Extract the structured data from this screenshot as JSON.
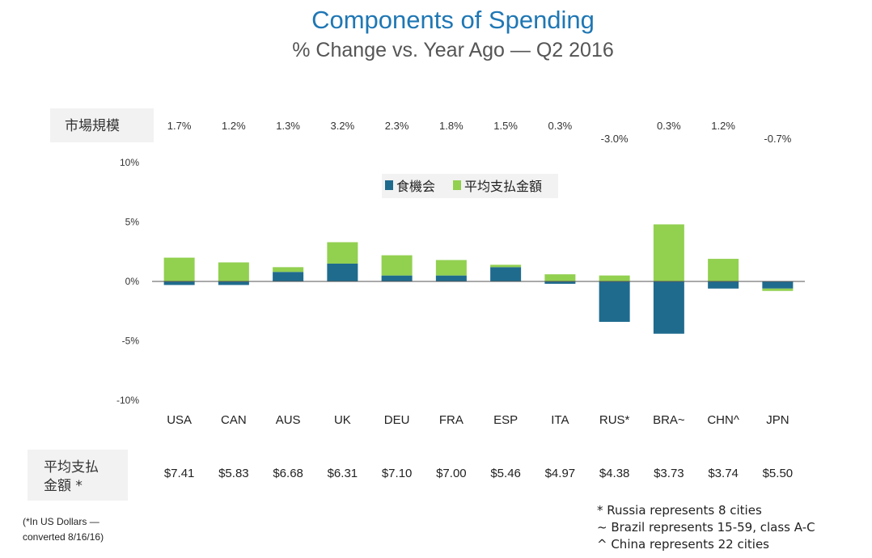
{
  "chart_data": {
    "type": "bar",
    "stacked": true,
    "title": "Components of Spending",
    "subtitle": "% Change vs. Year Ago — Q2 2016",
    "categories": [
      "USA",
      "CAN",
      "AUS",
      "UK",
      "DEU",
      "FRA",
      "ESP",
      "ITA",
      "RUS*",
      "BRA~",
      "CHN^",
      "JPN"
    ],
    "series": [
      {
        "name": "食機会",
        "color": "#1f6b8e",
        "values": [
          -0.3,
          -0.3,
          0.8,
          1.5,
          0.5,
          0.5,
          1.2,
          -0.2,
          -3.4,
          -4.4,
          -0.6,
          -0.6
        ]
      },
      {
        "name": "平均支払金額",
        "color": "#92d050",
        "values": [
          2.0,
          1.6,
          0.4,
          1.8,
          1.7,
          1.3,
          0.2,
          0.6,
          0.5,
          4.8,
          1.9,
          -0.2
        ]
      }
    ],
    "ylim": [
      -10,
      10
    ],
    "yticks": [
      10,
      5,
      0,
      -5,
      -10
    ],
    "ytick_labels": [
      "10%",
      "5%",
      "0%",
      "-5%",
      "-10%"
    ],
    "legend_position": "top-center",
    "grid": false
  },
  "market_row": {
    "label": "市場規模",
    "values": [
      "1.7%",
      "1.2%",
      "1.3%",
      "3.2%",
      "2.3%",
      "1.8%",
      "1.5%",
      "0.3%",
      "-3.0%",
      "0.3%",
      "1.2%",
      "-0.7%"
    ]
  },
  "price_row": {
    "label_line1": "平均支払",
    "label_line2": "金額 *",
    "values": [
      "$7.41",
      "$5.83",
      "$6.68",
      "$6.31",
      "$7.10",
      "$7.00",
      "$5.46",
      "$4.97",
      "$4.38",
      "$3.73",
      "$3.74",
      "$5.50"
    ]
  },
  "notes": {
    "currency_line1": "(*In US Dollars —",
    "currency_line2": "converted 8/16/16)",
    "footnotes": [
      "* Russia represents 8 cities",
      "~ Brazil represents 15-59, class A-C",
      "^ China represents 22 cities"
    ]
  },
  "colors": {
    "title": "#1f77b4",
    "label_box": "#f2f2f2",
    "axis": "#555555"
  }
}
